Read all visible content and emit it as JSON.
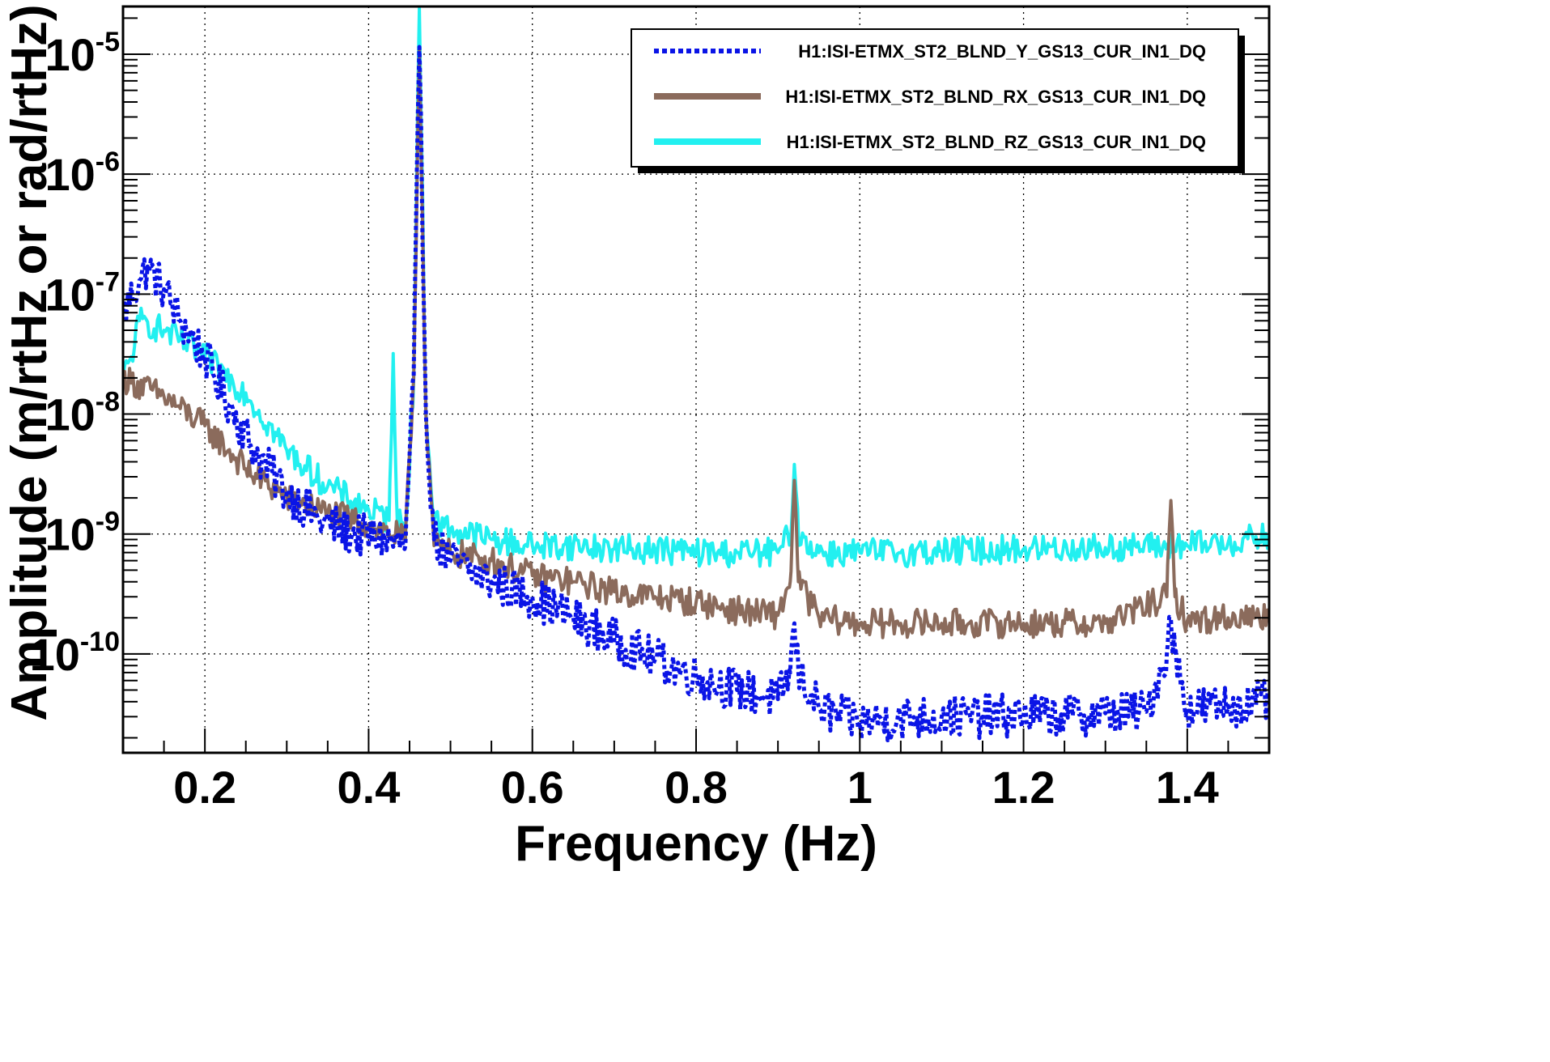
{
  "chart_data": {
    "type": "line",
    "title": "",
    "xlabel": "Frequency (Hz)",
    "ylabel": "Amplitude (m/rtHz or rad/rtHz)",
    "xlim": [
      0.1,
      1.5
    ],
    "ylim": [
      1.5e-11,
      2.5e-05
    ],
    "yscale": "log",
    "grid": true,
    "legend_position": "top-right",
    "x_ticks": [
      {
        "value": 0.2,
        "label": "0.2"
      },
      {
        "value": 0.4,
        "label": "0.4"
      },
      {
        "value": 0.6,
        "label": "0.6"
      },
      {
        "value": 0.8,
        "label": "0.8"
      },
      {
        "value": 1.0,
        "label": "1"
      },
      {
        "value": 1.2,
        "label": "1.2"
      },
      {
        "value": 1.4,
        "label": "1.4"
      }
    ],
    "y_ticks": [
      {
        "value": 1e-10,
        "base": "10",
        "exp": "-10"
      },
      {
        "value": 1e-09,
        "base": "10",
        "exp": "-9"
      },
      {
        "value": 1e-08,
        "base": "10",
        "exp": "-8"
      },
      {
        "value": 1e-07,
        "base": "10",
        "exp": "-7"
      },
      {
        "value": 1e-06,
        "base": "10",
        "exp": "-6"
      },
      {
        "value": 1e-05,
        "base": "10",
        "exp": "-5"
      }
    ],
    "series": [
      {
        "name": "H1:ISI-ETMX_ST2_BLND_Y_GS13_CUR_IN1_DQ",
        "color": "#0a14e6",
        "style": "dotted",
        "x": [
          0.1,
          0.12,
          0.13,
          0.15,
          0.17,
          0.2,
          0.23,
          0.26,
          0.3,
          0.34,
          0.38,
          0.42,
          0.445,
          0.455,
          0.462,
          0.47,
          0.48,
          0.5,
          0.55,
          0.6,
          0.65,
          0.7,
          0.75,
          0.8,
          0.85,
          0.9,
          0.915,
          0.92,
          0.925,
          0.95,
          1.0,
          1.05,
          1.1,
          1.15,
          1.2,
          1.25,
          1.3,
          1.35,
          1.375,
          1.38,
          1.385,
          1.4,
          1.45,
          1.5
        ],
        "y": [
          7e-08,
          1.3e-07,
          1.7e-07,
          1.1e-07,
          6e-08,
          3e-08,
          1.2e-08,
          5e-09,
          2.2e-09,
          1.3e-09,
          1e-09,
          9e-10,
          8e-10,
          2e-08,
          1.15e-05,
          1e-08,
          9e-10,
          6e-10,
          4e-10,
          3e-10,
          2e-10,
          1.3e-10,
          9e-11,
          6.5e-11,
          5e-11,
          4.2e-11,
          7e-11,
          1.8e-10,
          7e-11,
          3.5e-11,
          2.7e-11,
          2.9e-11,
          3e-11,
          3e-11,
          3.1e-11,
          3.1e-11,
          3.2e-11,
          3.3e-11,
          1e-10,
          2e-10,
          1e-10,
          3.5e-11,
          3.7e-11,
          4e-11
        ]
      },
      {
        "name": "H1:ISI-ETMX_ST2_BLND_RX_GS13_CUR_IN1_DQ",
        "color": "#8b6b5c",
        "style": "solid",
        "x": [
          0.1,
          0.15,
          0.2,
          0.25,
          0.3,
          0.35,
          0.4,
          0.445,
          0.455,
          0.462,
          0.47,
          0.48,
          0.5,
          0.55,
          0.6,
          0.65,
          0.7,
          0.75,
          0.8,
          0.85,
          0.9,
          0.915,
          0.92,
          0.925,
          0.95,
          1.0,
          1.05,
          1.1,
          1.2,
          1.3,
          1.375,
          1.38,
          1.385,
          1.4,
          1.45,
          1.5
        ],
        "y": [
          2e-08,
          1.4e-08,
          8e-09,
          3.5e-09,
          2e-09,
          1.5e-09,
          1.2e-09,
          9e-10,
          2e-08,
          1.15e-05,
          1e-08,
          8e-10,
          7e-10,
          6e-10,
          4.5e-10,
          4e-10,
          3.3e-10,
          3e-10,
          2.7e-10,
          2.3e-10,
          2.1e-10,
          4e-10,
          2.8e-09,
          4e-10,
          2e-10,
          1.8e-10,
          1.8e-10,
          1.8e-10,
          1.8e-10,
          1.8e-10,
          3e-10,
          1.9e-09,
          3e-10,
          1.9e-10,
          2e-10,
          2.1e-10
        ]
      },
      {
        "name": "H1:ISI-ETMX_ST2_BLND_RZ_GS13_CUR_IN1_DQ",
        "color": "#22f0f0",
        "style": "solid",
        "x": [
          0.1,
          0.11,
          0.12,
          0.15,
          0.2,
          0.25,
          0.3,
          0.35,
          0.4,
          0.425,
          0.43,
          0.435,
          0.445,
          0.455,
          0.462,
          0.47,
          0.48,
          0.5,
          0.55,
          0.6,
          0.65,
          0.7,
          0.75,
          0.8,
          0.85,
          0.9,
          0.915,
          0.92,
          0.925,
          0.95,
          1.0,
          1.05,
          1.1,
          1.2,
          1.3,
          1.4,
          1.45,
          1.5
        ],
        "y": [
          2e-08,
          3e-08,
          6e-08,
          5e-08,
          3e-08,
          1.5e-08,
          5e-09,
          2.5e-09,
          1.6e-09,
          1.3e-09,
          3.2e-08,
          1.3e-09,
          1.1e-09,
          2e-08,
          2.4e-05,
          1e-08,
          1.3e-09,
          1.1e-09,
          9e-10,
          8e-10,
          8e-10,
          7.5e-10,
          7.5e-10,
          7e-10,
          7e-10,
          7e-10,
          1e-09,
          3.8e-09,
          1e-09,
          7e-10,
          7e-10,
          7e-10,
          7.2e-10,
          7.5e-10,
          7.7e-10,
          8e-10,
          8.5e-10,
          9.5e-10
        ]
      }
    ]
  }
}
